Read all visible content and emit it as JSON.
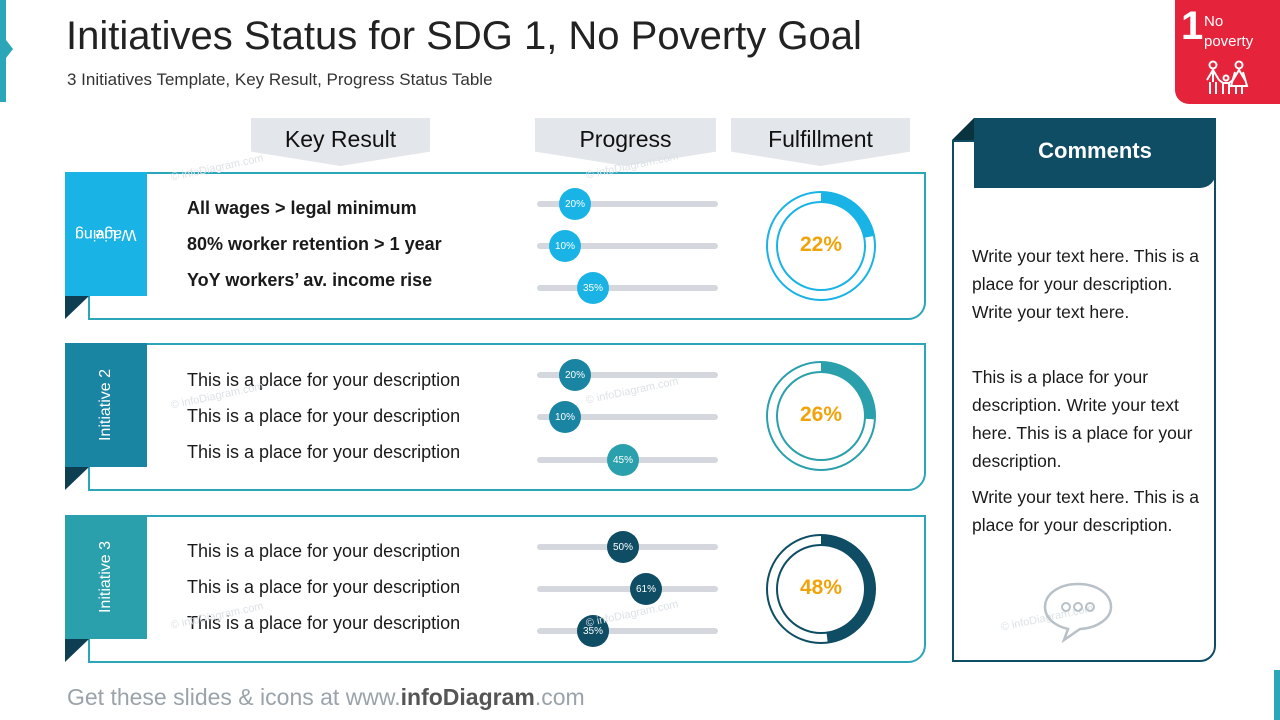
{
  "header": {
    "title": "Initiatives Status for SDG 1, No Poverty Goal",
    "subtitle": "3 Initiatives Template, Key Result, Progress Status Table"
  },
  "badge": {
    "number": "1",
    "line1": "No",
    "line2": "poverty",
    "icon": "family-icon",
    "color": "#e5243b"
  },
  "columns": {
    "key_result": "Key Result",
    "progress": "Progress",
    "fulfillment": "Fulfillment"
  },
  "rows": [
    {
      "label": "Living Wage",
      "label_line1": "Living",
      "label_line2": "Wage",
      "color": "#1ab3e6",
      "items": [
        {
          "text": "All wages > legal minimum",
          "progress": "20%",
          "value": 20
        },
        {
          "text": "80% worker retention > 1 year",
          "progress": "10%",
          "value": 10
        },
        {
          "text": "YoY workers’ av. income  rise",
          "progress": "35%",
          "value": 35
        }
      ],
      "fulfillment": "22%",
      "fulfillment_value": 22
    },
    {
      "label": "Initiative 2",
      "color": "#1a84a3",
      "items": [
        {
          "text": "This is a place for your description",
          "progress": "20%",
          "value": 20
        },
        {
          "text": "This is a place for your description",
          "progress": "10%",
          "value": 10
        },
        {
          "text": "This is a place for your description",
          "progress": "45%",
          "value": 45
        }
      ],
      "fulfillment": "26%",
      "fulfillment_value": 26
    },
    {
      "label": "Initiative 3",
      "color": "#2aa0ac",
      "knob_color": "#0e4d64",
      "items": [
        {
          "text": "This is a place for your description",
          "progress": "50%",
          "value": 50
        },
        {
          "text": "This is a place for your description",
          "progress": "61%",
          "value": 61
        },
        {
          "text": "This is a place for your description",
          "progress": "35%",
          "value": 35
        }
      ],
      "fulfillment": "48%",
      "fulfillment_value": 48
    }
  ],
  "comments": {
    "title": "Comments",
    "paragraphs": [
      "Write your text here. This is a place for your description. Write your text here.",
      "This is a place for your description. Write your text here. This is a place for your description.",
      "Write your text here. This is a place for your description."
    ],
    "icon": "speech-bubble-icon"
  },
  "footer": {
    "prefix": "Get these slides & icons at www.",
    "brand": "infoDiagram",
    "suffix": ".com"
  },
  "watermark": "© infoDiagram.com"
}
